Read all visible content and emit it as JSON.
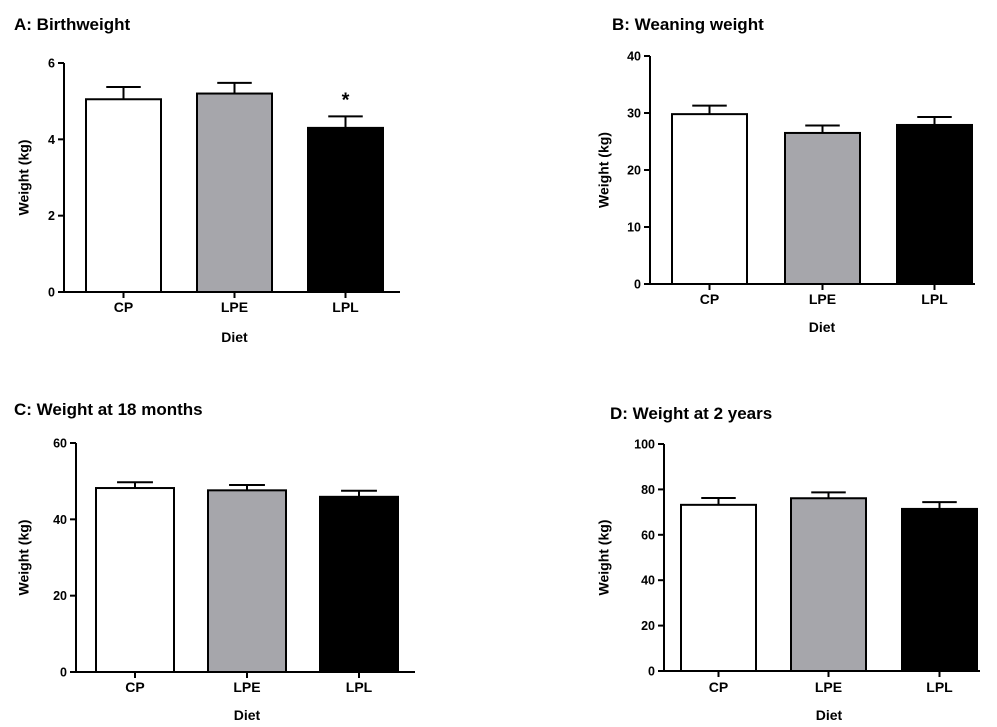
{
  "figure": {
    "panel_ids": [
      "A",
      "B",
      "C",
      "D"
    ]
  },
  "chart_data": [
    {
      "type": "bar",
      "title": "A: Birthweight",
      "xlabel": "Diet",
      "ylabel": "Weight (kg)",
      "ylim": [
        0,
        6
      ],
      "yticks": [
        "0",
        "2",
        "4",
        "6"
      ],
      "categories": [
        "CP",
        "LPE",
        "LPL"
      ],
      "values": [
        5.05,
        5.2,
        4.3
      ],
      "errors": [
        0.32,
        0.28,
        0.3
      ],
      "bar_colors": [
        "#ffffff",
        "#a6a6ab",
        "#000000"
      ],
      "annotations": [
        "",
        "",
        "*"
      ],
      "grid": false
    },
    {
      "type": "bar",
      "title": "B: Weaning weight",
      "xlabel": "Diet",
      "ylabel": "Weight (kg)",
      "ylim": [
        0,
        40
      ],
      "yticks": [
        "0",
        "10",
        "20",
        "30",
        "40"
      ],
      "categories": [
        "CP",
        "LPE",
        "LPL"
      ],
      "values": [
        29.8,
        26.5,
        27.9
      ],
      "errors": [
        1.5,
        1.3,
        1.4
      ],
      "bar_colors": [
        "#ffffff",
        "#a6a6ab",
        "#000000"
      ],
      "annotations": [
        "",
        "",
        ""
      ],
      "grid": false
    },
    {
      "type": "bar",
      "title": "C: Weight at 18 months",
      "xlabel": "Diet",
      "ylabel": "Weight (kg)",
      "ylim": [
        0,
        60
      ],
      "yticks": [
        "0",
        "20",
        "40",
        "60"
      ],
      "categories": [
        "CP",
        "LPE",
        "LPL"
      ],
      "values": [
        48.2,
        47.6,
        45.9
      ],
      "errors": [
        1.5,
        1.4,
        1.6
      ],
      "bar_colors": [
        "#ffffff",
        "#a6a6ab",
        "#000000"
      ],
      "annotations": [
        "",
        "",
        ""
      ],
      "grid": false
    },
    {
      "type": "bar",
      "title": "D: Weight at 2 years",
      "xlabel": "Diet",
      "ylabel": "Weight (kg)",
      "ylim": [
        0,
        100
      ],
      "yticks": [
        "0",
        "20",
        "40",
        "60",
        "80",
        "100"
      ],
      "categories": [
        "CP",
        "LPE",
        "LPL"
      ],
      "values": [
        73.2,
        76.1,
        71.4
      ],
      "errors": [
        3.0,
        2.6,
        3.0
      ],
      "bar_colors": [
        "#ffffff",
        "#a6a6ab",
        "#000000"
      ],
      "annotations": [
        "",
        "",
        ""
      ],
      "grid": false
    }
  ]
}
